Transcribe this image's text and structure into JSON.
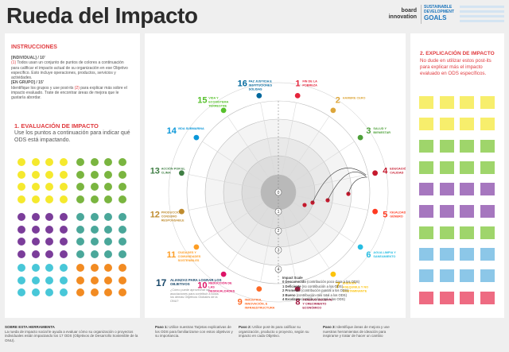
{
  "header": {
    "title": "Rueda del Impacto",
    "logo_bi_1": "board",
    "logo_bi_2": "innovation",
    "logo_sdg_1": "SUSTAINABLE",
    "logo_sdg_2": "DEVELOPMENT",
    "logo_sdg_3": "GOALS"
  },
  "instructions": {
    "heading": "INSTRUCCIONES",
    "individual_label": "[INDIVIDUAL] / 10'",
    "individual_text_num": "(1)",
    "individual_text": " Todos usan un conjunto de puntos de colores a continuación para calificar el impacto actual de su organización en ese Objetivo específico. Esto incluye operaciones, productos, servicios y actividades.",
    "group_label": "[EN GRUPO] / 15'",
    "group_text_a": "Identifique los grupos y use post-its ",
    "group_text_num": "(2)",
    "group_text_b": " para explicar más sobre el impacto evaluado. Trate de encontrar áreas de mejora que le gustaría abordar."
  },
  "evaluation": {
    "heading": "1. EVALUACIÓN DE IMPACTO",
    "text": "Use los puntos a continuación para indicar qué ODS está impactando."
  },
  "explanation": {
    "heading": "2. EXPLICACIÓN DE IMPACTO",
    "text": "No dude en utilizar estos post-its para explicar más el impacto evaluado en ODS específicos."
  },
  "goals": [
    {
      "num": "1",
      "label": "FIN DE LA POBREZA",
      "color": "#e5243b"
    },
    {
      "num": "2",
      "label": "HAMBRE CERO",
      "color": "#dda63a"
    },
    {
      "num": "3",
      "label": "SALUD Y BIENESTAR",
      "color": "#4c9f38"
    },
    {
      "num": "4",
      "label": "EDUCACIÓN DE CALIDAD",
      "color": "#c5192d"
    },
    {
      "num": "5",
      "label": "IGUALDAD DE GÉNERO",
      "color": "#ff3a21"
    },
    {
      "num": "6",
      "label": "AGUA LIMPIA Y SANEAMIENTO",
      "color": "#26bde2"
    },
    {
      "num": "7",
      "label": "ENERGÍA ASEQUIBLE Y NO CONTAMINANTE",
      "color": "#fcc30b"
    },
    {
      "num": "8",
      "label": "TRABAJO DECENTE Y CRECIMIENTO ECONÓMICO",
      "color": "#a21942"
    },
    {
      "num": "9",
      "label": "INDUSTRIA, INNOVACIÓN, E INFRAESTRUCTURA",
      "color": "#fd6925"
    },
    {
      "num": "10",
      "label": "REDUCCIÓN DE LAS DESIGUALDADES",
      "color": "#dd1367"
    },
    {
      "num": "11",
      "label": "CIUDADES Y COMUNIDADES SOSTENIBLES",
      "color": "#fd9d24"
    },
    {
      "num": "12",
      "label": "PRODUCCIÓN Y CONSUMO RESPONSABLE",
      "color": "#bf8b2e"
    },
    {
      "num": "13",
      "label": "ACCIÓN POR EL CLIMA",
      "color": "#3f7e44"
    },
    {
      "num": "14",
      "label": "VIDA SUBMARINA",
      "color": "#0a97d9"
    },
    {
      "num": "15",
      "label": "VIDA Y ECOSISTEMA TERRESTRE",
      "color": "#56c02b"
    },
    {
      "num": "16",
      "label": "PAZ JUSTICIA E INSTITUCIONES SÓLIDAS",
      "color": "#00689d"
    }
  ],
  "goal17": {
    "num": "17",
    "label": "ALIANZAS PARA LOGRAR LOS OBJETIVOS",
    "sub": "¿Cómo puede aprovechar las asociaciones para contribuir a todos los demás Objetivos Globales de la ONU?",
    "color": "#19486a"
  },
  "scale": {
    "title": "Impact Scale",
    "items": [
      {
        "n": "0",
        "name": "Desconocido",
        "desc": " (contribución poco clara a los ODS)"
      },
      {
        "n": "1",
        "name": "Deficiente",
        "desc": " (no contribución a los ODS)"
      },
      {
        "n": "2",
        "name": "Promedio",
        "desc": " (contribución parcial a los ODS)"
      },
      {
        "n": "3",
        "name": "Bueno",
        "desc": " (contribución casi total a los ODS)"
      },
      {
        "n": "4",
        "name": "Excelente",
        "desc": " (contribución total a los ODS)"
      }
    ],
    "rings": [
      "0",
      "1",
      "2",
      "3",
      "4"
    ]
  },
  "footer": {
    "about_title": "SOBRE ESTA HERRAMIENTA",
    "about_text": "La rueda de impacto social le ayuda a evaluar cómo su organización o proyectos individuales están impactando los 17 ODS (Objetivos de Desarrollo Sostenible de la ONU).",
    "step1_label": "Paso 1:",
    "step1_text": " Utilice nuestras Tarjetas explicativas de los ODS para familiarizarse con estos objetivos y su importancia.",
    "step2_label": "Paso 2:",
    "step2_text": " Utilice post-its para calificar su organización, producto o proyecto, según su impacto en cada Objetivo.",
    "step3_label": "Paso 3:",
    "step3_text": " Identifique áreas de mejora y use nuestras herramientas de ideación para inspirarse y tratar de hacer un cambio"
  },
  "colors": {
    "yellow": "#f5e92e",
    "green": "#7ab540",
    "purple": "#7b3d9a",
    "teal": "#4aa79a",
    "cyan": "#48c7d8",
    "orange": "#f28b22",
    "note_yellow": "#f7ee6c",
    "note_green": "#9fd56b",
    "note_purple": "#a677bf",
    "note_blue": "#8cc7e8",
    "note_pink": "#ee6b82"
  }
}
